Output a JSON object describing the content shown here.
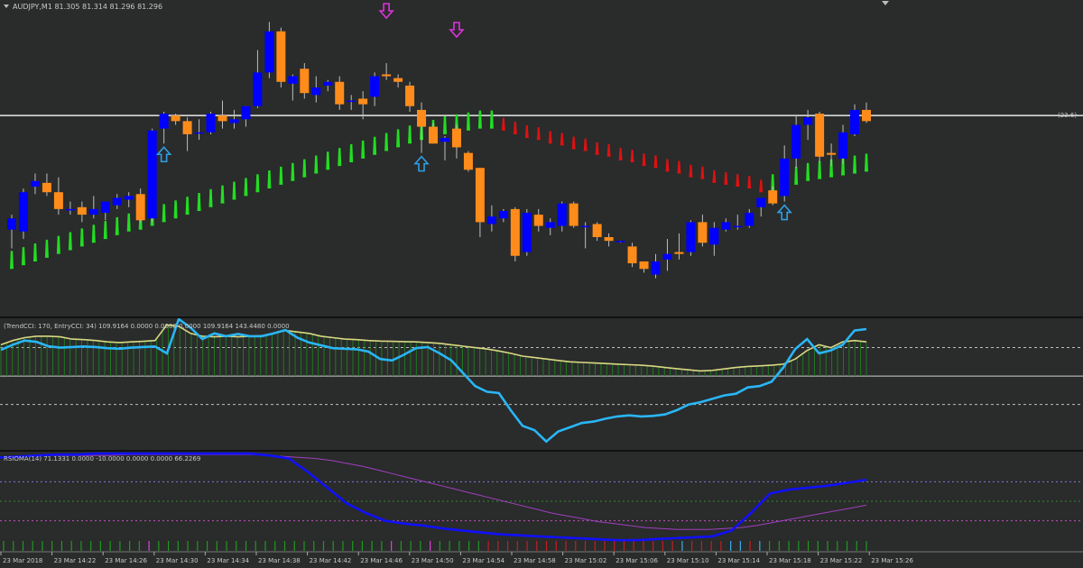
{
  "chart_data": [
    {
      "type": "candlestick",
      "panel": "price",
      "header": "AUDJPY,M1  81.305 81.314 81.296 81.296",
      "level_label": "(23.6) -",
      "colors": {
        "bull": "#0000ff",
        "bear": "#ff8c1a",
        "trail_up": "#22dd22",
        "trail_down": "#dd1111",
        "arrow_sell": "#dd33dd",
        "arrow_buy": "#2f9fe6",
        "level": "#e8e8e8"
      },
      "level_value": 81.325,
      "ylim": [
        81.22,
        81.38
      ],
      "candles": [
        {
          "o": 81.264,
          "h": 81.272,
          "l": 81.254,
          "c": 81.27
        },
        {
          "o": 81.263,
          "h": 81.286,
          "l": 81.259,
          "c": 81.284
        },
        {
          "o": 81.287,
          "h": 81.294,
          "l": 81.283,
          "c": 81.29
        },
        {
          "o": 81.289,
          "h": 81.294,
          "l": 81.282,
          "c": 81.284
        },
        {
          "o": 81.284,
          "h": 81.292,
          "l": 81.272,
          "c": 81.275
        },
        {
          "o": 81.275,
          "h": 81.279,
          "l": 81.272,
          "c": 81.275
        },
        {
          "o": 81.276,
          "h": 81.279,
          "l": 81.268,
          "c": 81.272
        },
        {
          "o": 81.272,
          "h": 81.282,
          "l": 81.27,
          "c": 81.275
        },
        {
          "o": 81.273,
          "h": 81.279,
          "l": 81.269,
          "c": 81.279
        },
        {
          "o": 81.277,
          "h": 81.283,
          "l": 81.275,
          "c": 81.281
        },
        {
          "o": 81.28,
          "h": 81.284,
          "l": 81.276,
          "c": 81.282
        },
        {
          "o": 81.283,
          "h": 81.286,
          "l": 81.268,
          "c": 81.269
        },
        {
          "o": 81.27,
          "h": 81.318,
          "l": 81.268,
          "c": 81.317
        },
        {
          "o": 81.318,
          "h": 81.327,
          "l": 81.31,
          "c": 81.326
        },
        {
          "o": 81.325,
          "h": 81.326,
          "l": 81.32,
          "c": 81.322
        },
        {
          "o": 81.322,
          "h": 81.324,
          "l": 81.306,
          "c": 81.315
        },
        {
          "o": 81.316,
          "h": 81.323,
          "l": 81.312,
          "c": 81.316
        },
        {
          "o": 81.316,
          "h": 81.327,
          "l": 81.315,
          "c": 81.326
        },
        {
          "o": 81.325,
          "h": 81.333,
          "l": 81.318,
          "c": 81.322
        },
        {
          "o": 81.321,
          "h": 81.328,
          "l": 81.318,
          "c": 81.323
        },
        {
          "o": 81.323,
          "h": 81.33,
          "l": 81.319,
          "c": 81.33
        },
        {
          "o": 81.33,
          "h": 81.36,
          "l": 81.329,
          "c": 81.348
        },
        {
          "o": 81.348,
          "h": 81.375,
          "l": 81.345,
          "c": 81.37
        },
        {
          "o": 81.37,
          "h": 81.372,
          "l": 81.34,
          "c": 81.343
        },
        {
          "o": 81.342,
          "h": 81.347,
          "l": 81.333,
          "c": 81.346
        },
        {
          "o": 81.35,
          "h": 81.353,
          "l": 81.334,
          "c": 81.337
        },
        {
          "o": 81.336,
          "h": 81.346,
          "l": 81.332,
          "c": 81.34
        },
        {
          "o": 81.341,
          "h": 81.344,
          "l": 81.338,
          "c": 81.343
        },
        {
          "o": 81.343,
          "h": 81.346,
          "l": 81.328,
          "c": 81.331
        },
        {
          "o": 81.333,
          "h": 81.336,
          "l": 81.328,
          "c": 81.333
        },
        {
          "o": 81.334,
          "h": 81.338,
          "l": 81.323,
          "c": 81.331
        },
        {
          "o": 81.335,
          "h": 81.348,
          "l": 81.33,
          "c": 81.346
        },
        {
          "o": 81.347,
          "h": 81.353,
          "l": 81.344,
          "c": 81.346
        },
        {
          "o": 81.345,
          "h": 81.347,
          "l": 81.34,
          "c": 81.343
        },
        {
          "o": 81.341,
          "h": 81.343,
          "l": 81.327,
          "c": 81.33
        },
        {
          "o": 81.328,
          "h": 81.332,
          "l": 81.305,
          "c": 81.319
        },
        {
          "o": 81.319,
          "h": 81.321,
          "l": 81.31,
          "c": 81.31
        },
        {
          "o": 81.311,
          "h": 81.314,
          "l": 81.301,
          "c": 81.313
        },
        {
          "o": 81.318,
          "h": 81.32,
          "l": 81.302,
          "c": 81.308
        },
        {
          "o": 81.305,
          "h": 81.306,
          "l": 81.295,
          "c": 81.296
        },
        {
          "o": 81.297,
          "h": 81.297,
          "l": 81.26,
          "c": 81.268
        },
        {
          "o": 81.267,
          "h": 81.277,
          "l": 81.263,
          "c": 81.271
        },
        {
          "o": 81.27,
          "h": 81.275,
          "l": 81.268,
          "c": 81.274
        },
        {
          "o": 81.275,
          "h": 81.276,
          "l": 81.247,
          "c": 81.25
        },
        {
          "o": 81.252,
          "h": 81.275,
          "l": 81.25,
          "c": 81.273
        },
        {
          "o": 81.272,
          "h": 81.275,
          "l": 81.263,
          "c": 81.266
        },
        {
          "o": 81.265,
          "h": 81.27,
          "l": 81.261,
          "c": 81.268
        },
        {
          "o": 81.266,
          "h": 81.279,
          "l": 81.263,
          "c": 81.278
        },
        {
          "o": 81.278,
          "h": 81.279,
          "l": 81.265,
          "c": 81.266
        },
        {
          "o": 81.266,
          "h": 81.268,
          "l": 81.254,
          "c": 81.266
        },
        {
          "o": 81.267,
          "h": 81.268,
          "l": 81.258,
          "c": 81.26
        },
        {
          "o": 81.26,
          "h": 81.262,
          "l": 81.255,
          "c": 81.258
        },
        {
          "o": 81.258,
          "h": 81.258,
          "l": 81.257,
          "c": 81.258
        },
        {
          "o": 81.255,
          "h": 81.257,
          "l": 81.244,
          "c": 81.246
        },
        {
          "o": 81.247,
          "h": 81.247,
          "l": 81.241,
          "c": 81.243
        },
        {
          "o": 81.24,
          "h": 81.251,
          "l": 81.238,
          "c": 81.247
        },
        {
          "o": 81.248,
          "h": 81.259,
          "l": 81.242,
          "c": 81.251
        },
        {
          "o": 81.252,
          "h": 81.262,
          "l": 81.248,
          "c": 81.251
        },
        {
          "o": 81.252,
          "h": 81.269,
          "l": 81.25,
          "c": 81.268
        },
        {
          "o": 81.268,
          "h": 81.272,
          "l": 81.255,
          "c": 81.257
        },
        {
          "o": 81.256,
          "h": 81.268,
          "l": 81.25,
          "c": 81.265
        },
        {
          "o": 81.264,
          "h": 81.27,
          "l": 81.263,
          "c": 81.268
        },
        {
          "o": 81.266,
          "h": 81.272,
          "l": 81.264,
          "c": 81.266
        },
        {
          "o": 81.266,
          "h": 81.275,
          "l": 81.265,
          "c": 81.273
        },
        {
          "o": 81.276,
          "h": 81.281,
          "l": 81.271,
          "c": 81.281
        },
        {
          "o": 81.285,
          "h": 81.287,
          "l": 81.277,
          "c": 81.278
        },
        {
          "o": 81.282,
          "h": 81.309,
          "l": 81.279,
          "c": 81.302
        },
        {
          "o": 81.302,
          "h": 81.325,
          "l": 81.297,
          "c": 81.32
        },
        {
          "o": 81.32,
          "h": 81.328,
          "l": 81.312,
          "c": 81.324
        },
        {
          "o": 81.326,
          "h": 81.327,
          "l": 81.3,
          "c": 81.303
        },
        {
          "o": 81.305,
          "h": 81.31,
          "l": 81.298,
          "c": 81.304
        },
        {
          "o": 81.302,
          "h": 81.32,
          "l": 81.299,
          "c": 81.316
        },
        {
          "o": 81.315,
          "h": 81.331,
          "l": 81.314,
          "c": 81.328
        },
        {
          "o": 81.328,
          "h": 81.332,
          "l": 81.321,
          "c": 81.322
        }
      ],
      "trail": [
        {
          "v": 81.243,
          "d": "up"
        },
        {
          "v": 81.245,
          "d": "up"
        },
        {
          "v": 81.247,
          "d": "up"
        },
        {
          "v": 81.249,
          "d": "up"
        },
        {
          "v": 81.251,
          "d": "up"
        },
        {
          "v": 81.253,
          "d": "up"
        },
        {
          "v": 81.255,
          "d": "up"
        },
        {
          "v": 81.257,
          "d": "up"
        },
        {
          "v": 81.259,
          "d": "up"
        },
        {
          "v": 81.261,
          "d": "up"
        },
        {
          "v": 81.263,
          "d": "up"
        },
        {
          "v": 81.264,
          "d": "up"
        },
        {
          "v": 81.266,
          "d": "up"
        },
        {
          "v": 81.268,
          "d": "up"
        },
        {
          "v": 81.27,
          "d": "up"
        },
        {
          "v": 81.272,
          "d": "up"
        },
        {
          "v": 81.274,
          "d": "up"
        },
        {
          "v": 81.276,
          "d": "up"
        },
        {
          "v": 81.278,
          "d": "up"
        },
        {
          "v": 81.28,
          "d": "up"
        },
        {
          "v": 81.282,
          "d": "up"
        },
        {
          "v": 81.284,
          "d": "up"
        },
        {
          "v": 81.286,
          "d": "up"
        },
        {
          "v": 81.288,
          "d": "up"
        },
        {
          "v": 81.29,
          "d": "up"
        },
        {
          "v": 81.292,
          "d": "up"
        },
        {
          "v": 81.294,
          "d": "up"
        },
        {
          "v": 81.296,
          "d": "up"
        },
        {
          "v": 81.298,
          "d": "up"
        },
        {
          "v": 81.3,
          "d": "up"
        },
        {
          "v": 81.302,
          "d": "up"
        },
        {
          "v": 81.304,
          "d": "up"
        },
        {
          "v": 81.306,
          "d": "up"
        },
        {
          "v": 81.308,
          "d": "up"
        },
        {
          "v": 81.31,
          "d": "up"
        },
        {
          "v": 81.312,
          "d": "up"
        },
        {
          "v": 81.313,
          "d": "up"
        },
        {
          "v": 81.315,
          "d": "up"
        },
        {
          "v": 81.316,
          "d": "up"
        },
        {
          "v": 81.317,
          "d": "up"
        },
        {
          "v": 81.318,
          "d": "up"
        },
        {
          "v": 81.318,
          "d": "up"
        },
        {
          "v": 81.317,
          "d": "down"
        },
        {
          "v": 81.315,
          "d": "down"
        },
        {
          "v": 81.313,
          "d": "down"
        },
        {
          "v": 81.312,
          "d": "down"
        },
        {
          "v": 81.31,
          "d": "down"
        },
        {
          "v": 81.309,
          "d": "down"
        },
        {
          "v": 81.307,
          "d": "down"
        },
        {
          "v": 81.306,
          "d": "down"
        },
        {
          "v": 81.304,
          "d": "down"
        },
        {
          "v": 81.303,
          "d": "down"
        },
        {
          "v": 81.301,
          "d": "down"
        },
        {
          "v": 81.3,
          "d": "down"
        },
        {
          "v": 81.298,
          "d": "down"
        },
        {
          "v": 81.297,
          "d": "down"
        },
        {
          "v": 81.295,
          "d": "down"
        },
        {
          "v": 81.294,
          "d": "down"
        },
        {
          "v": 81.292,
          "d": "down"
        },
        {
          "v": 81.291,
          "d": "down"
        },
        {
          "v": 81.289,
          "d": "down"
        },
        {
          "v": 81.288,
          "d": "down"
        },
        {
          "v": 81.287,
          "d": "down"
        },
        {
          "v": 81.286,
          "d": "down"
        },
        {
          "v": 81.284,
          "d": "down"
        },
        {
          "v": 81.284,
          "d": "up"
        },
        {
          "v": 81.286,
          "d": "up"
        },
        {
          "v": 81.288,
          "d": "up"
        },
        {
          "v": 81.29,
          "d": "up"
        },
        {
          "v": 81.291,
          "d": "up"
        },
        {
          "v": 81.292,
          "d": "up"
        },
        {
          "v": 81.293,
          "d": "up"
        },
        {
          "v": 81.294,
          "d": "up"
        },
        {
          "v": 81.295,
          "d": "up"
        }
      ],
      "arrows": [
        {
          "i": 32,
          "dir": "down",
          "color": "sell"
        },
        {
          "i": 38,
          "dir": "down",
          "color": "sell"
        },
        {
          "i": 13,
          "dir": "up",
          "color": "buy"
        },
        {
          "i": 35,
          "dir": "up",
          "color": "buy"
        },
        {
          "i": 66,
          "dir": "up",
          "color": "buy"
        }
      ]
    },
    {
      "type": "line",
      "panel": "cci",
      "header": "(TrendCCI: 170, EntryCCI: 34)  109.9164 0.0000 0.0000 0.0000 109.9164 143.4480 0.0000",
      "ylim": [
        -250,
        200
      ],
      "levels": [
        100,
        0,
        -100
      ],
      "series": [
        {
          "values": [
            110,
            125,
            135,
            140,
            140,
            138,
            130,
            128,
            125,
            120,
            118,
            120,
            122,
            125,
            180,
            175,
            150,
            140,
            138,
            140,
            138,
            140,
            142,
            150,
            160,
            155,
            150,
            140,
            135,
            130,
            128,
            125,
            123,
            122,
            121,
            120,
            118,
            115,
            110,
            105,
            100,
            95,
            88,
            80,
            70,
            65,
            60,
            55,
            50,
            48,
            46,
            44,
            42,
            40,
            38,
            35,
            30,
            26,
            22,
            18,
            20,
            25,
            30,
            34,
            36,
            38,
            42,
            60,
            90,
            110,
            100,
            120,
            125,
            120
          ]
        },
        {
          "values": [
            92,
            110,
            125,
            120,
            105,
            100,
            102,
            104,
            102,
            98,
            96,
            100,
            102,
            104,
            80,
            200,
            170,
            130,
            150,
            140,
            148,
            140,
            140,
            150,
            162,
            135,
            118,
            108,
            98,
            96,
            94,
            86,
            60,
            55,
            75,
            98,
            102,
            80,
            55,
            10,
            -35,
            -55,
            -60,
            -120,
            -175,
            -190,
            -230,
            -195,
            -180,
            -165,
            -160,
            -150,
            -142,
            -138,
            -142,
            -140,
            -135,
            -120,
            -100,
            -92,
            -80,
            -68,
            -62,
            -40,
            -35,
            -20,
            30,
            95,
            130,
            80,
            90,
            110,
            160,
            165
          ]
        }
      ]
    },
    {
      "type": "line",
      "panel": "rsioma",
      "header": "RSIOMA(14) 71.1331 0.0000 -10.0000 0.0000 0.0000 66.2269",
      "ylim": [
        0,
        100
      ],
      "levels": [
        70,
        50,
        30
      ],
      "series": [
        {
          "values": [
            95,
            96,
            96,
            97,
            97,
            97,
            97,
            97,
            98,
            98,
            98,
            98,
            98,
            98,
            98,
            98,
            98,
            97,
            96,
            95,
            94,
            92,
            89,
            86,
            82,
            78,
            74,
            70,
            66,
            62,
            58,
            54,
            50,
            46,
            42,
            38,
            35,
            32,
            29,
            27,
            25,
            23,
            22,
            21,
            21,
            21,
            22,
            23,
            25,
            28,
            31,
            34,
            37,
            40,
            43,
            46
          ]
        },
        {
          "values": [
            95,
            96,
            97,
            98,
            98,
            99,
            99,
            99,
            99,
            99,
            99,
            99,
            99,
            99,
            97,
            94,
            80,
            64,
            48,
            38,
            30,
            27,
            25,
            22,
            20,
            18,
            16,
            15,
            14,
            13,
            12,
            11,
            10,
            10,
            11,
            12,
            13,
            14,
            20,
            38,
            58,
            62,
            64,
            66,
            69,
            72
          ]
        }
      ]
    }
  ],
  "xaxis": {
    "ticks": [
      "23 Mar 2018",
      "23 Mar 14:22",
      "23 Mar 14:26",
      "23 Mar 14:30",
      "23 Mar 14:34",
      "23 Mar 14:38",
      "23 Mar 14:42",
      "23 Mar 14:46",
      "23 Mar 14:50",
      "23 Mar 14:54",
      "23 Mar 14:58",
      "23 Mar 15:02",
      "23 Mar 15:06",
      "23 Mar 15:10",
      "23 Mar 15:14",
      "23 Mar 15:18",
      "23 Mar 15:22",
      "23 Mar 15:26"
    ]
  },
  "theme": {
    "background": "#2a2b2b",
    "separator": "#111111",
    "bars": "#1f7a1f",
    "cci_main": "#d8d880",
    "cci_entry": "#29b6f6",
    "rsi_main": "#1010ff",
    "rsi_sig": "#a040c0"
  }
}
